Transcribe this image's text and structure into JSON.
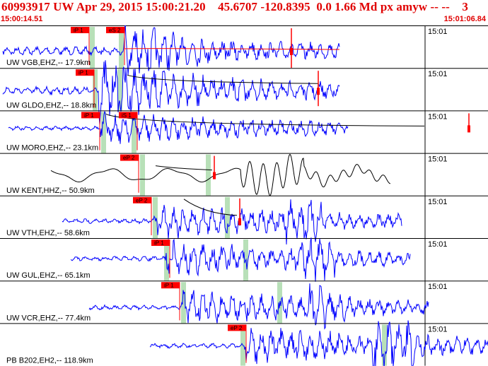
{
  "header": {
    "title": "60993917 UW Apr 29, 2015 15:00:21.20    45.6707 -120.8395  0.0 1.66 Md px amyw -- --    3",
    "start_time": "15:00:14.51",
    "end_time": "15:01:06.84"
  },
  "colors": {
    "trace": "#0000ff",
    "trace_alt": "#000000",
    "pick": "#ff0000",
    "highlight": "#b8e0b8",
    "header_text": "#e00000"
  },
  "traces": [
    {
      "label": "UW VGB,EHZ,-- 17.9km",
      "minute_label": "15:01",
      "color": "trace",
      "picks": [
        {
          "label": "iP 1"
        },
        {
          "label": "eS 2"
        }
      ]
    },
    {
      "label": "UW GLDO,EHZ,-- 18.8km",
      "minute_label": "15:01",
      "color": "trace",
      "picks": [
        {
          "label": "iP 1"
        }
      ]
    },
    {
      "label": "UW MORO,EHZ,-- 23.1km",
      "minute_label": "15:01",
      "color": "trace",
      "picks": [
        {
          "label": "iP 1"
        },
        {
          "label": "iS 1"
        }
      ]
    },
    {
      "label": "UW KENT,HHZ,-- 50.9km",
      "minute_label": "15:01",
      "color": "trace_alt",
      "picks": [
        {
          "label": "eP 2"
        }
      ]
    },
    {
      "label": "UW VTH,EHZ,-- 58.6km",
      "minute_label": "15:01",
      "color": "trace",
      "picks": [
        {
          "label": "eP 2"
        }
      ]
    },
    {
      "label": "UW GUL,EHZ,-- 65.1km",
      "minute_label": "15:01",
      "color": "trace",
      "picks": [
        {
          "label": "iP 1"
        }
      ]
    },
    {
      "label": "UW VCR,EHZ,-- 77.4km",
      "minute_label": "15:01",
      "color": "trace",
      "picks": [
        {
          "label": "iP 1"
        }
      ]
    },
    {
      "label": "PB B202,EH2,-- 118.9km",
      "minute_label": "15:01",
      "color": "trace",
      "picks": [
        {
          "label": "eP 2"
        }
      ]
    }
  ]
}
